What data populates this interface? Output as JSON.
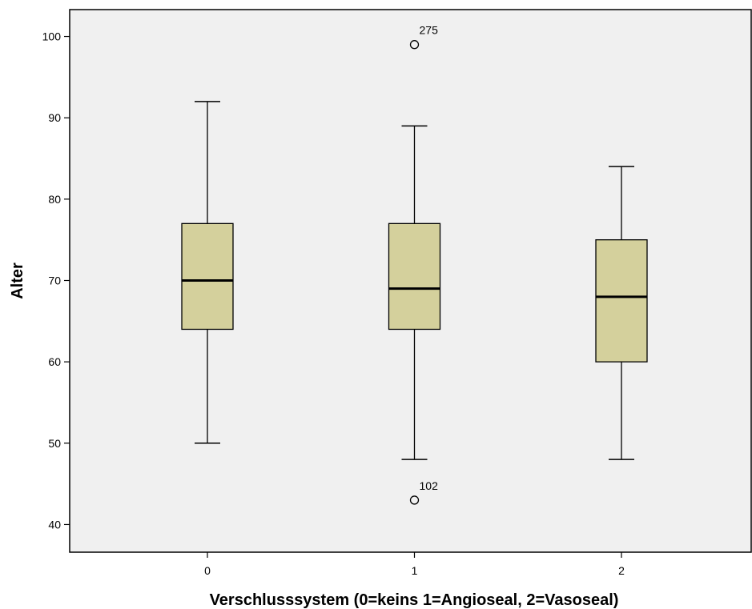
{
  "chart_data": {
    "type": "box",
    "xlabel": "Verschlusssystem (0=keins 1=Angioseal, 2=Vasoseal)",
    "ylabel": "Alter",
    "ylim": [
      36.6,
      103.3
    ],
    "yticks": [
      40,
      50,
      60,
      70,
      80,
      90,
      100
    ],
    "categories": [
      "0",
      "1",
      "2"
    ],
    "boxes": [
      {
        "category": "0",
        "whisker_low": 50,
        "q1": 64,
        "median": 70,
        "q3": 77,
        "whisker_high": 92,
        "outliers": []
      },
      {
        "category": "1",
        "whisker_low": 48,
        "q1": 64,
        "median": 69,
        "q3": 77,
        "whisker_high": 89,
        "outliers": [
          {
            "value": 99,
            "label": "275"
          },
          {
            "value": 43,
            "label": "102"
          }
        ]
      },
      {
        "category": "2",
        "whisker_low": 48,
        "q1": 60,
        "median": 68,
        "q3": 75,
        "whisker_high": 84,
        "outliers": []
      }
    ],
    "grid": false,
    "colors": {
      "box_fill": "#d4d09c",
      "plot_background": "#f0f0f0",
      "stroke": "#000000"
    }
  }
}
